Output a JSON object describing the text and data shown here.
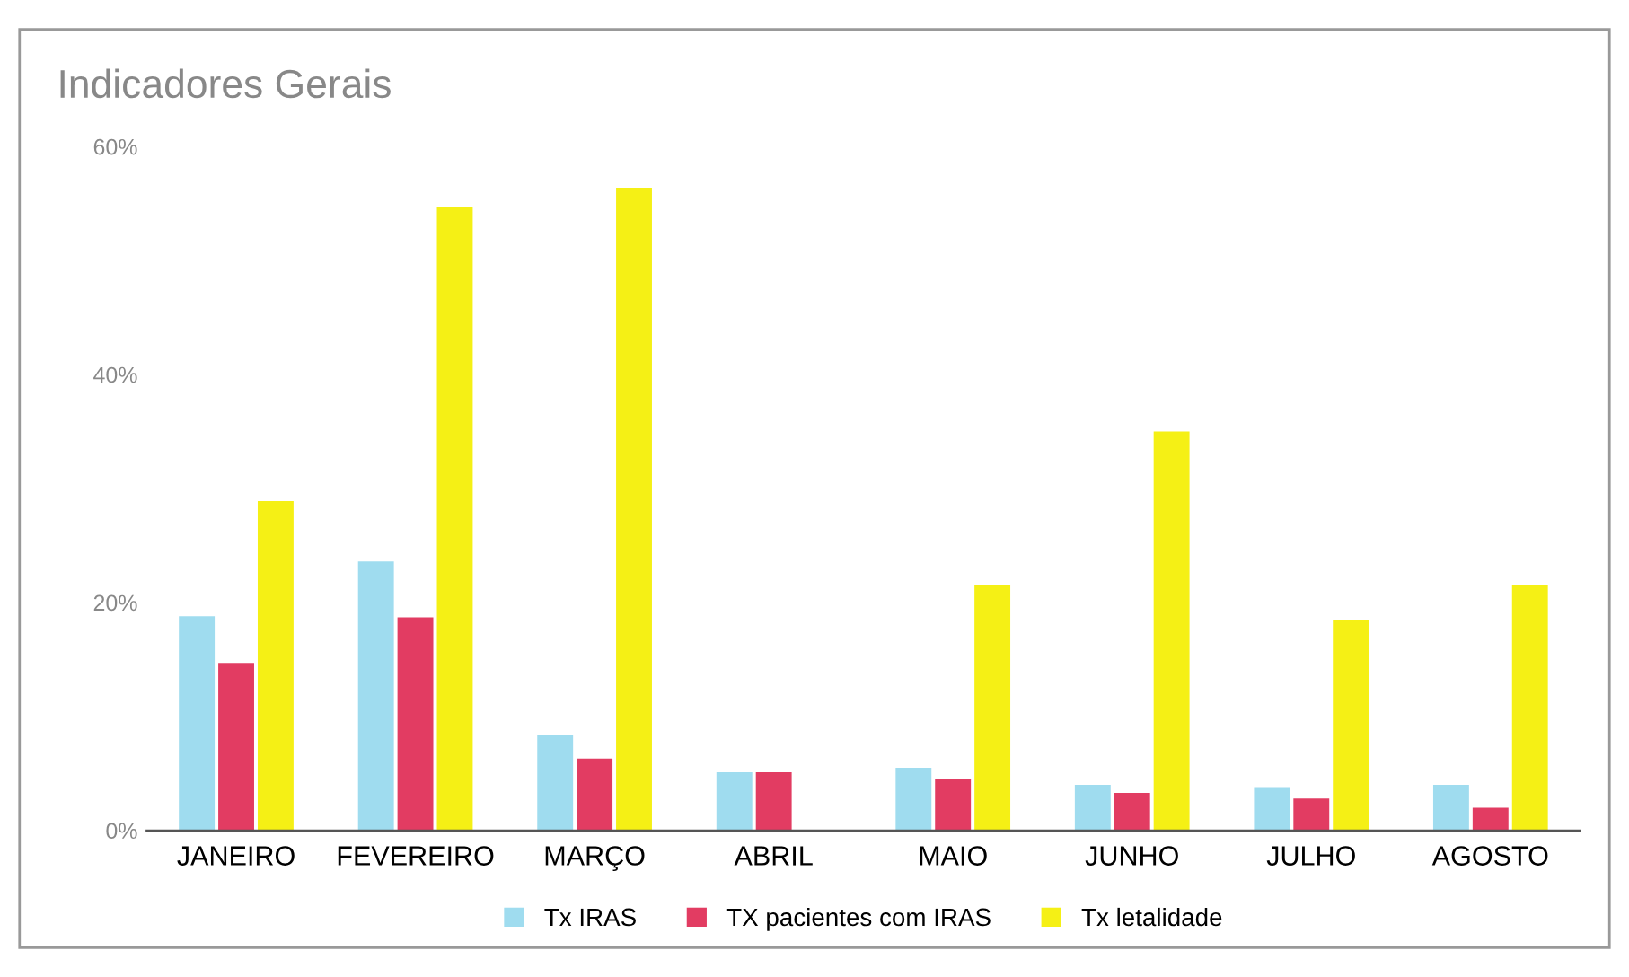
{
  "chart_data": {
    "type": "bar",
    "title": "Indicadores Gerais",
    "categories": [
      "JANEIRO",
      "FEVEREIRO",
      "MARÇO",
      "ABRIL",
      "MAIO",
      "JUNHO",
      "JULHO",
      "AGOSTO"
    ],
    "series": [
      {
        "name": "Tx IRAS",
        "color": "#9fdcef",
        "values": [
          18.8,
          23.6,
          8.4,
          5.1,
          5.5,
          4,
          3.8,
          4
        ]
      },
      {
        "name": "TX pacientes com IRAS",
        "color": "#e23c62",
        "values": [
          14.7,
          18.7,
          6.3,
          5.1,
          4.5,
          3.3,
          2.8,
          2
        ]
      },
      {
        "name": "Tx letalidade",
        "color": "#f5f015",
        "values": [
          28.9,
          54.7,
          56.4,
          null,
          21.5,
          35,
          18.5,
          21.5
        ]
      }
    ],
    "ylim": [
      0,
      60
    ],
    "yticks": [
      {
        "value": 0,
        "label": "0%"
      },
      {
        "value": 20,
        "label": "20%"
      },
      {
        "value": 40,
        "label": "40%"
      },
      {
        "value": 60,
        "label": "60%"
      }
    ],
    "grid": false,
    "legend": "bottom"
  }
}
